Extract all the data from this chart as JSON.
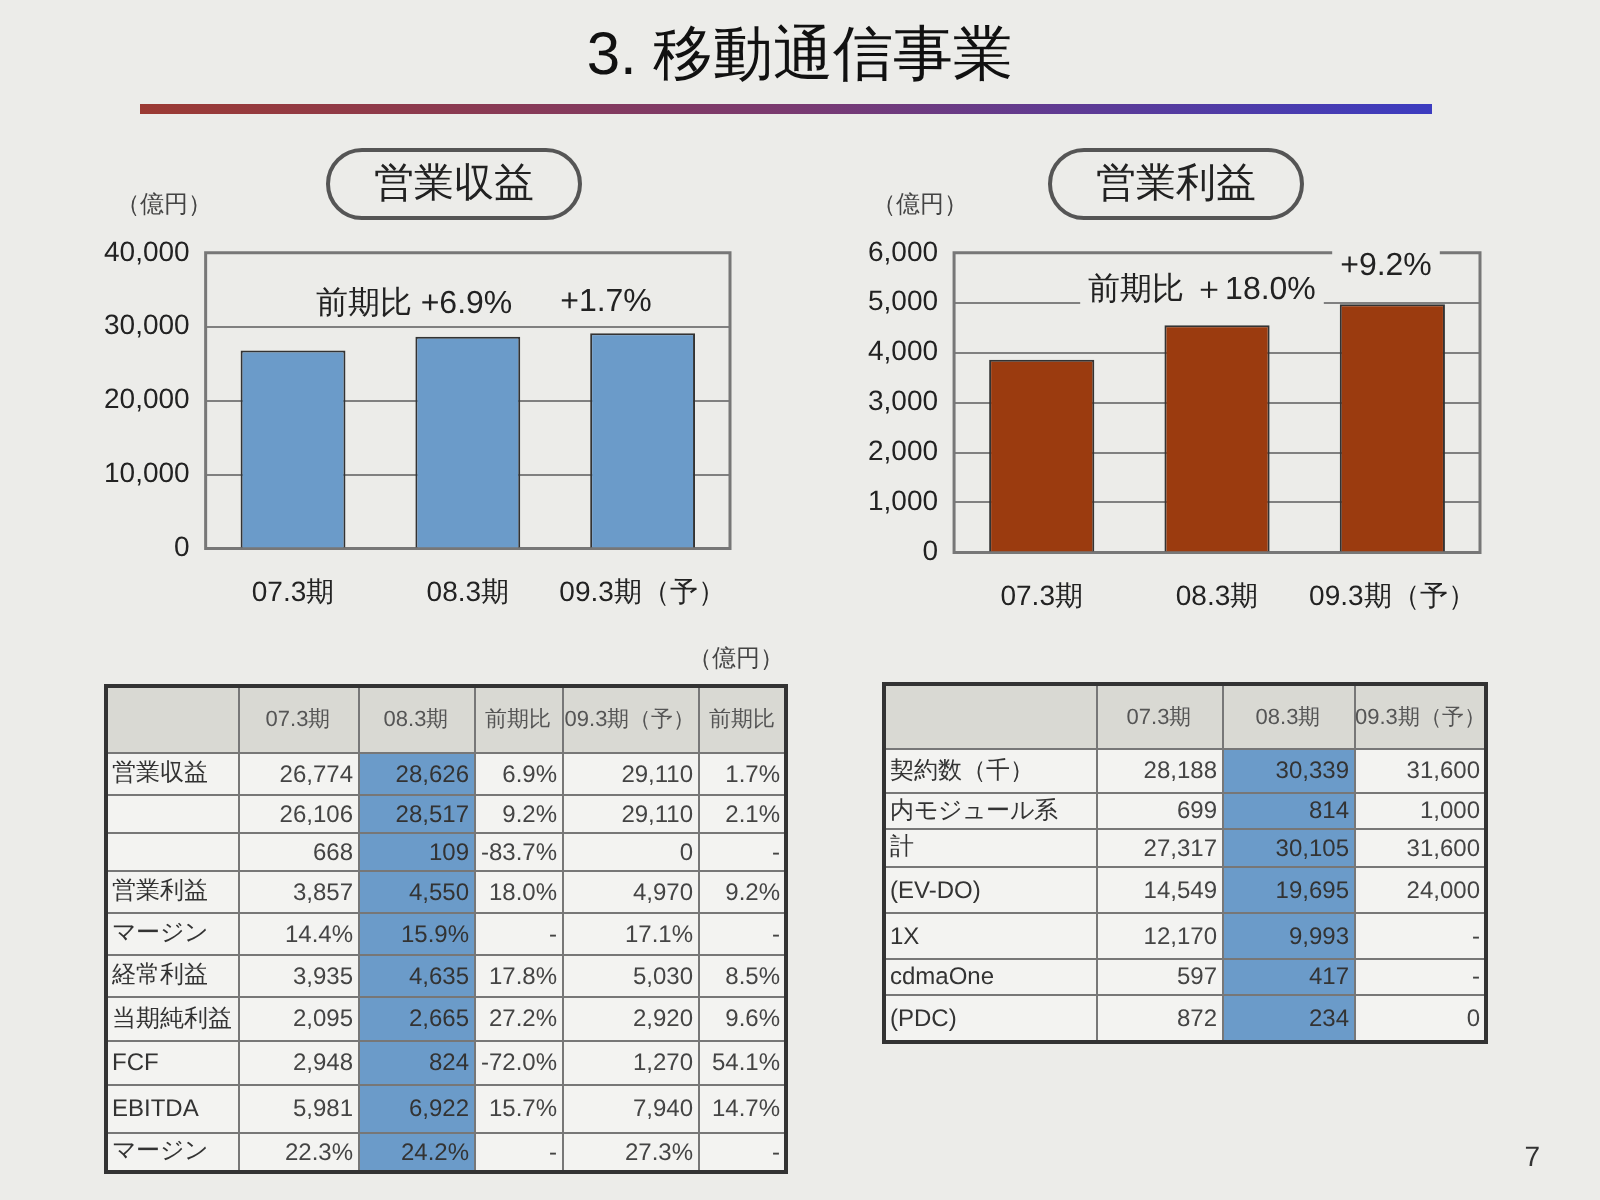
{
  "chart_data": [
    {
      "type": "other",
      "title": "3. 移動通信事業",
      "annotations": [
        "7"
      ]
    },
    {
      "type": "bar",
      "title": "営業収益",
      "ylabel": "（億円）",
      "categories": [
        "07.3期",
        "08.3期",
        "09.3期（予）"
      ],
      "values": [
        26774,
        28626,
        29110
      ],
      "color": "#6b9bc9",
      "ylim": [
        0,
        40000
      ],
      "yticks": [
        0,
        {
          "value": 10000,
          "label": "10,000"
        },
        {
          "value": 20000,
          "label": "20,000"
        },
        {
          "value": 30000,
          "label": "30,000"
        },
        {
          "value": 40000,
          "label": "40,000"
        }
      ],
      "grid": "y",
      "annotations": [
        "前期比 +6.9%",
        "+1.7%"
      ]
    },
    {
      "type": "bar",
      "title": "営業利益",
      "ylabel": "（億円）",
      "categories": [
        "07.3期",
        "08.3期",
        "09.3期（予）"
      ],
      "values": [
        3857,
        4550,
        4970
      ],
      "color": "#9b3b0f",
      "ylim": [
        0,
        6000
      ],
      "yticks": [
        0,
        {
          "value": 1000,
          "label": "1,000"
        },
        {
          "value": 2000,
          "label": "2,000"
        },
        {
          "value": 3000,
          "label": "3,000"
        },
        {
          "value": 4000,
          "label": "4,000"
        },
        {
          "value": 5000,
          "label": "5,000"
        },
        {
          "value": 6000,
          "label": "6,000"
        }
      ],
      "grid": "y",
      "annotations": [
        "前期比 ＋18.0%",
        "+9.2%"
      ]
    },
    {
      "type": "other",
      "annotations": [
        "（億円）"
      ],
      "categories": [
        "07.3期",
        "08.3期",
        "前期比",
        "09.3期（予）",
        "前期比"
      ],
      "y_categories": [
        "営業収益",
        null,
        null,
        "営業利益",
        "マージン",
        "経常利益",
        "当期純利益",
        "FCF",
        "EBITDA",
        "マージン"
      ],
      "cell_labels": [
        [
          "26,774",
          "28,626",
          "6.9%",
          "29,110",
          "1.7%"
        ],
        [
          "26,106",
          "28,517",
          "9.2%",
          "29,110",
          "2.1%"
        ],
        [
          "668",
          "109",
          "-83.7%",
          "0",
          "-"
        ],
        [
          "3,857",
          "4,550",
          "18.0%",
          "4,970",
          "9.2%"
        ],
        [
          "14.4%",
          "15.9%",
          "-",
          "17.1%",
          "-"
        ],
        [
          "3,935",
          "4,635",
          "17.8%",
          "5,030",
          "8.5%"
        ],
        [
          "2,095",
          "2,665",
          "27.2%",
          "2,920",
          "9.6%"
        ],
        [
          "2,948",
          "824",
          "-72.0%",
          "1,270",
          "54.1%"
        ],
        [
          "5,981",
          "6,922",
          "15.7%",
          "7,940",
          "14.7%"
        ],
        [
          "22.3%",
          "24.2%",
          "-",
          "27.3%",
          "-"
        ]
      ]
    },
    {
      "type": "other",
      "categories": [
        "07.3期",
        "08.3期",
        "09.3期（予）"
      ],
      "y_categories": [
        "契約数（千）",
        "内モジュール系",
        "計",
        "(EV-DO)",
        "1X",
        "cdmaOne",
        "(PDC)"
      ],
      "cell_labels": [
        [
          "28,188",
          "30,339",
          "31,600"
        ],
        [
          "699",
          "814",
          "1,000"
        ],
        [
          "27,317",
          "30,105",
          "31,600"
        ],
        [
          "14,549",
          "19,695",
          "24,000"
        ],
        [
          "12,170",
          "9,993",
          "-"
        ],
        [
          "597",
          "417",
          "-"
        ],
        [
          "872",
          "234",
          "0"
        ]
      ]
    }
  ]
}
